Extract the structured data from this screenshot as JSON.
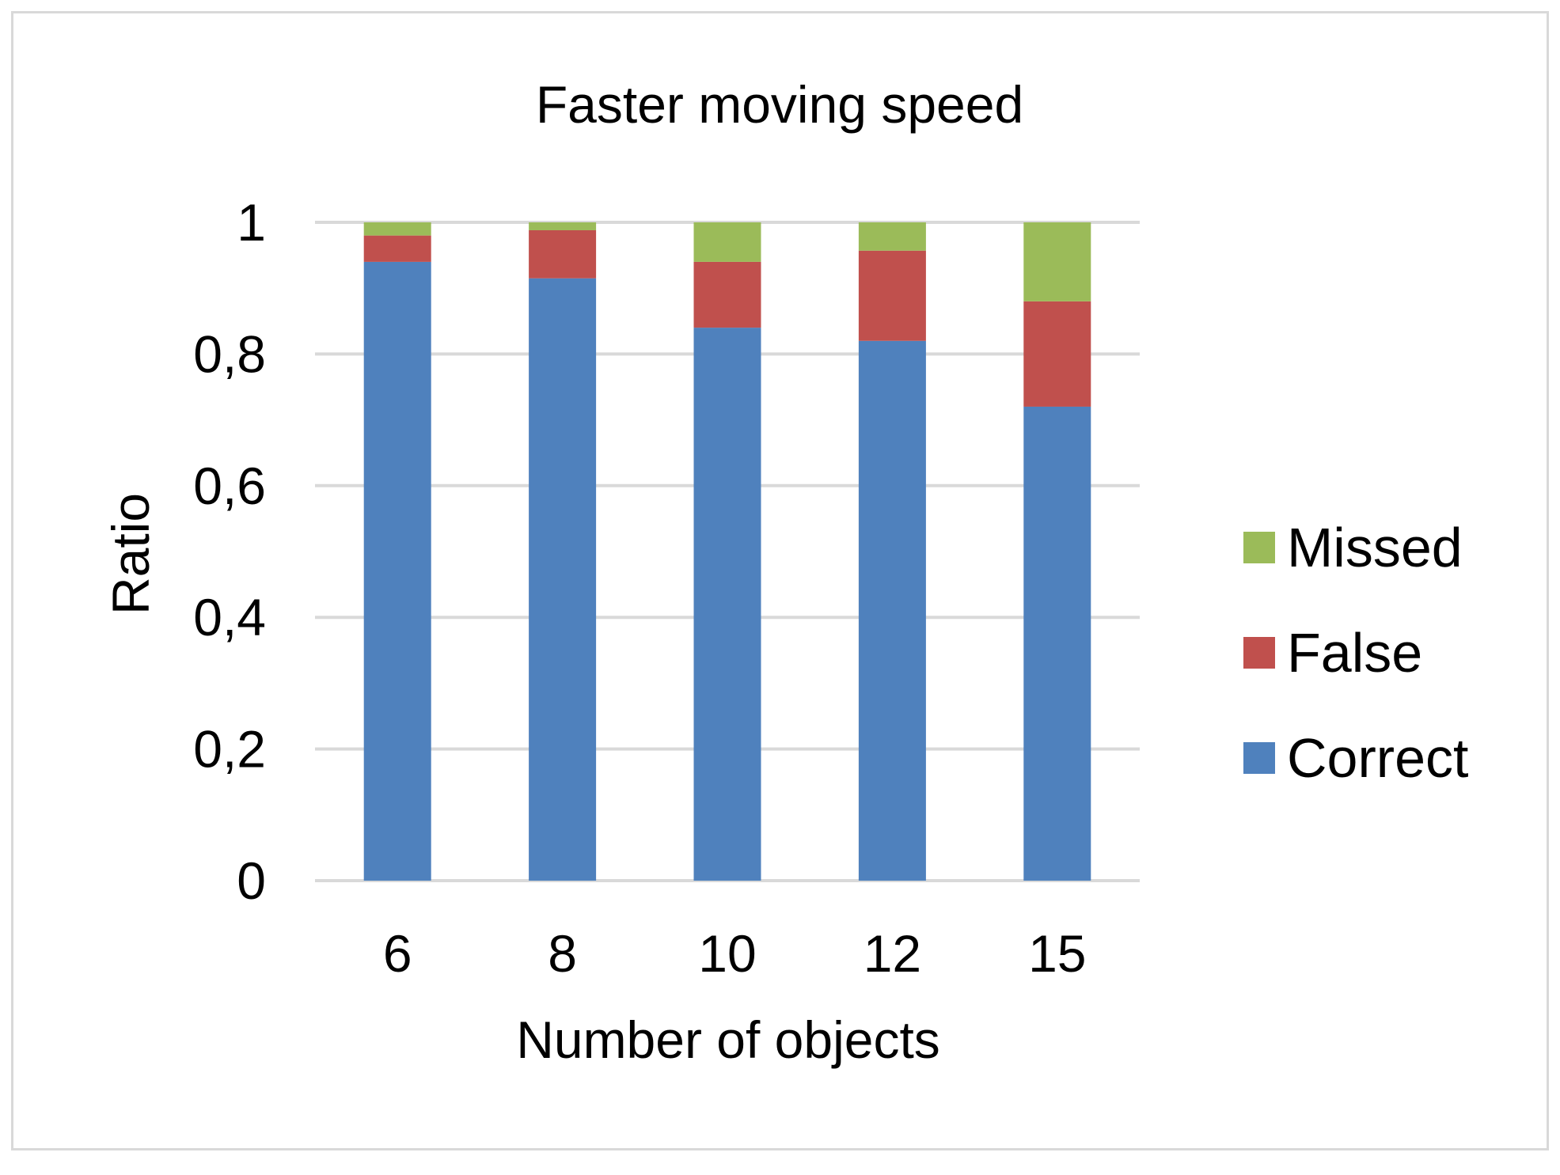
{
  "chart_data": {
    "type": "bar",
    "stacked": true,
    "title": "Faster moving speed",
    "xlabel": "Number of objects",
    "ylabel": "Ratio",
    "categories": [
      "6",
      "8",
      "10",
      "12",
      "15"
    ],
    "ylim": [
      0,
      1
    ],
    "yticks": [
      0,
      0.2,
      0.4,
      0.6,
      0.8,
      1
    ],
    "ytick_labels": [
      "0",
      "0,2",
      "0,4",
      "0,6",
      "0,8",
      "1"
    ],
    "grid": true,
    "legend_position": "right",
    "series": [
      {
        "name": "Correct",
        "color": "#4f81bd",
        "values": [
          0.94,
          0.915,
          0.84,
          0.82,
          0.72
        ]
      },
      {
        "name": "False",
        "color": "#c0504d",
        "values": [
          0.04,
          0.073,
          0.1,
          0.137,
          0.16
        ]
      },
      {
        "name": "Missed",
        "color": "#9bbb59",
        "values": [
          0.02,
          0.012,
          0.06,
          0.043,
          0.12
        ]
      }
    ],
    "legend_order": [
      "Missed",
      "False",
      "Correct"
    ],
    "gridline_color": "#d9d9d9"
  }
}
